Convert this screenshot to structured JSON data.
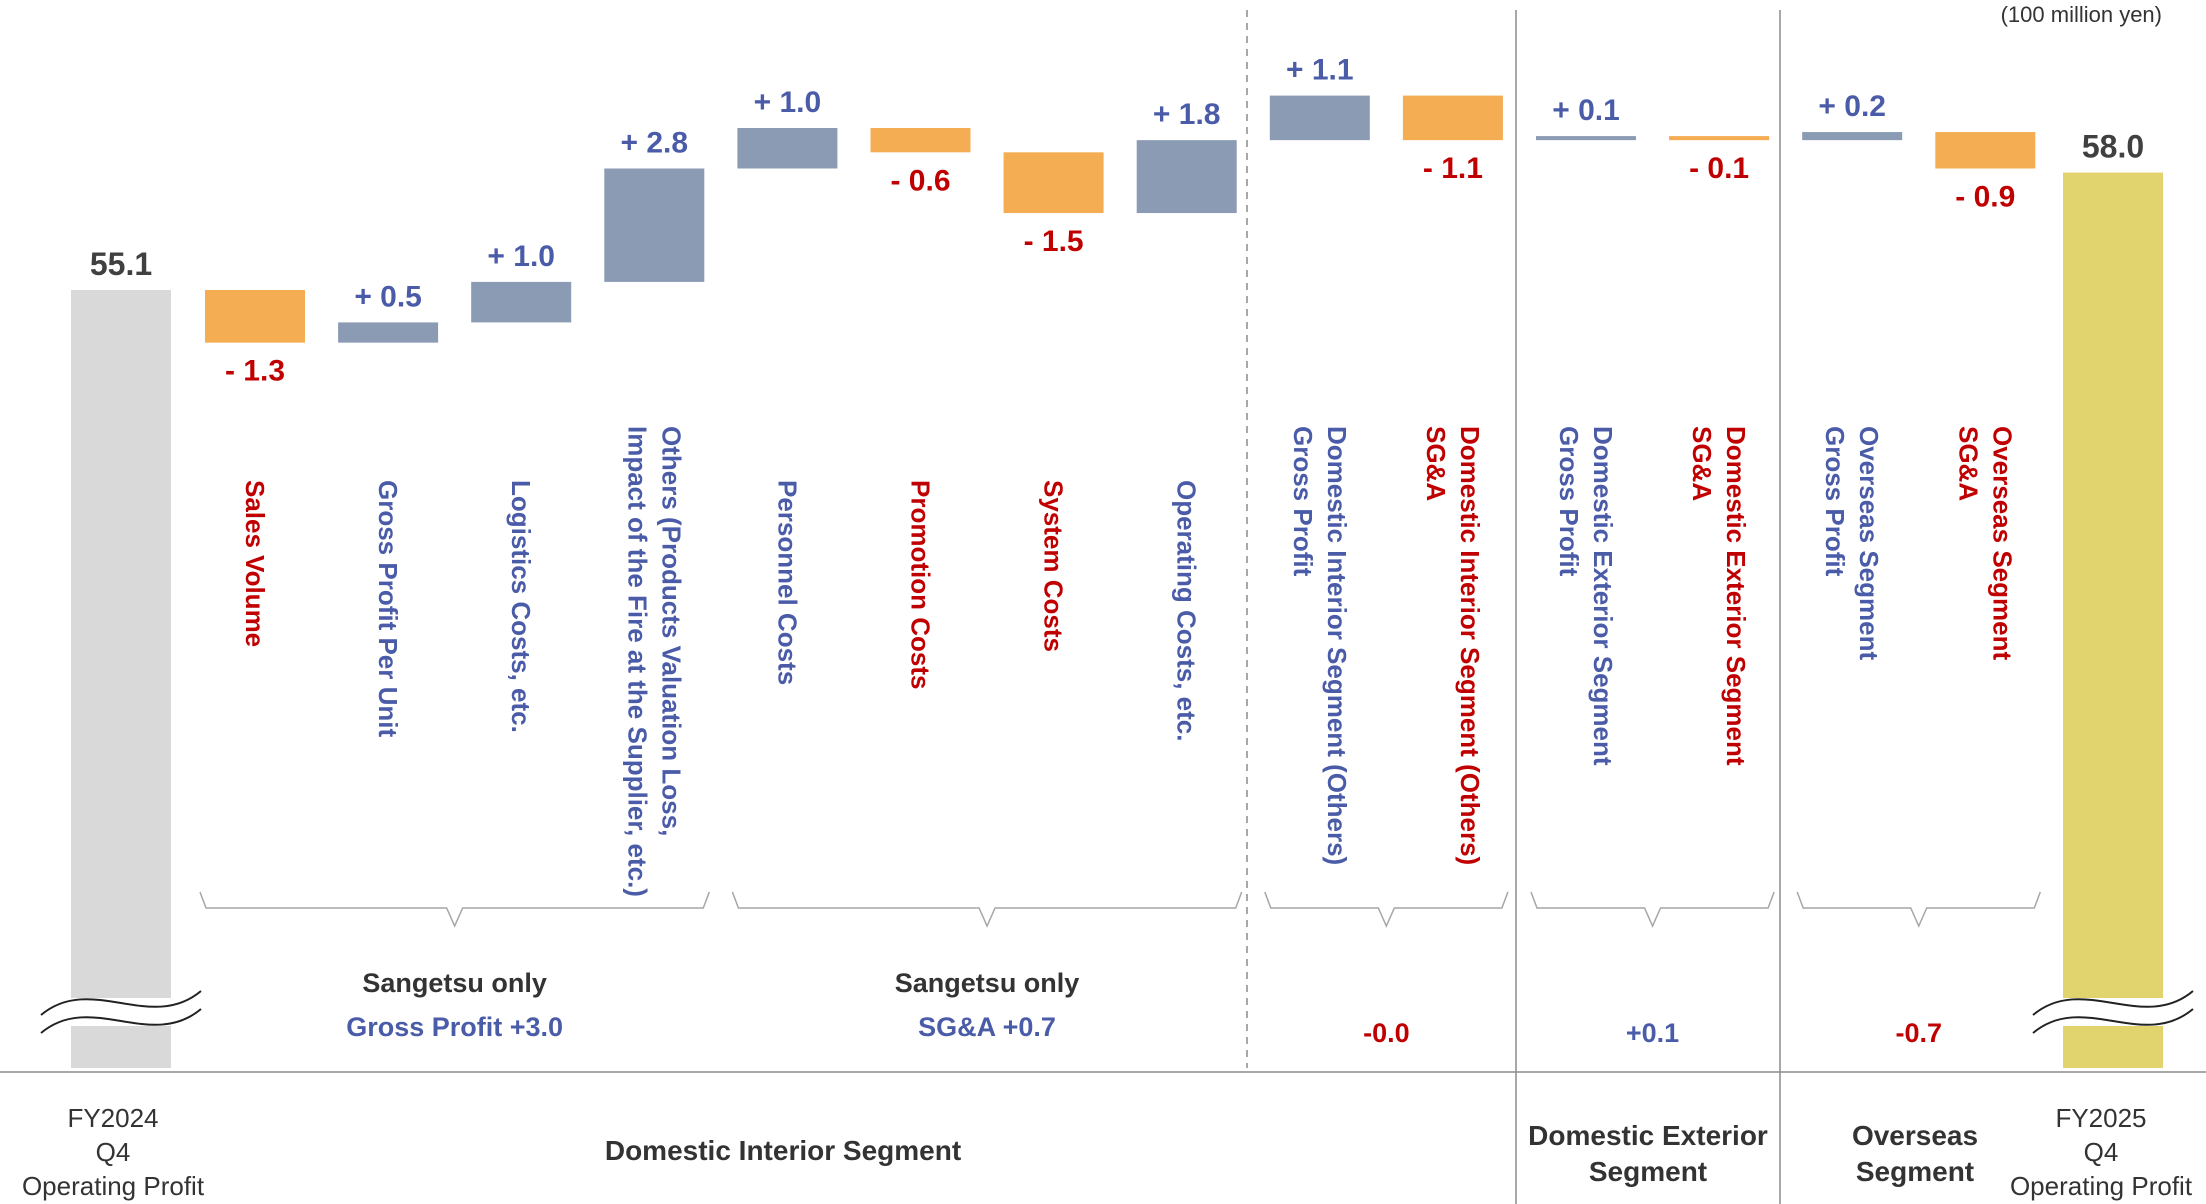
{
  "unit_note": "(100 million yen)",
  "colors": {
    "positive": "#8a9bb3",
    "negative": "#f4ad52",
    "start_bar": "#d9d9d9",
    "end_bar": "#e1d46e",
    "blue_text": "#4a5ba8",
    "red_text": "#c00000"
  },
  "chart_data": {
    "type": "bar",
    "subtype": "waterfall",
    "unit": "(100 million yen)",
    "start": {
      "label_lines": [
        "FY2024",
        "Q4",
        "Operating Profit"
      ],
      "value": 55.1,
      "value_text": "55.1"
    },
    "end": {
      "label_lines": [
        "FY2025",
        "Q4",
        "Operating Profit"
      ],
      "value": 58.0,
      "value_text": "58.0"
    },
    "steps": [
      {
        "label_lines": [
          "Sales Volume"
        ],
        "value": -1.3,
        "value_text": "- 1.3",
        "label_color": "red"
      },
      {
        "label_lines": [
          "Gross Profit Per Unit"
        ],
        "value": 0.5,
        "value_text": "+ 0.5",
        "label_color": "blue"
      },
      {
        "label_lines": [
          "Logistics Costs, etc."
        ],
        "value": 1.0,
        "value_text": "+ 1.0",
        "label_color": "blue"
      },
      {
        "label_lines": [
          "Others  (Products Valuation Loss,",
          "Impact of the Fire at the Supplier, etc.)"
        ],
        "value": 2.8,
        "value_text": "+ 2.8",
        "label_color": "blue"
      },
      {
        "label_lines": [
          "Personnel Costs"
        ],
        "value": 1.0,
        "value_text": "+ 1.0",
        "label_color": "blue"
      },
      {
        "label_lines": [
          "Promotion Costs"
        ],
        "value": -0.6,
        "value_text": "- 0.6",
        "label_color": "red"
      },
      {
        "label_lines": [
          "System Costs"
        ],
        "value": -1.5,
        "value_text": "- 1.5",
        "label_color": "red"
      },
      {
        "label_lines": [
          "Operating Costs, etc."
        ],
        "value": 1.8,
        "value_text": "+ 1.8",
        "label_color": "blue"
      },
      {
        "label_lines": [
          "Domestic Interior Segment (Others)",
          "Gross Profit"
        ],
        "value": 1.1,
        "value_text": "+ 1.1",
        "label_color": "blue"
      },
      {
        "label_lines": [
          "Domestic Interior Segment (Others)",
          "SG&A"
        ],
        "value": -1.1,
        "value_text": "- 1.1",
        "label_color": "red"
      },
      {
        "label_lines": [
          "Domestic Exterior Segment",
          "Gross Profit"
        ],
        "value": 0.1,
        "value_text": "+ 0.1",
        "label_color": "blue"
      },
      {
        "label_lines": [
          "Domestic Exterior Segment",
          "SG&A"
        ],
        "value": -0.1,
        "value_text": "- 0.1",
        "label_color": "red"
      },
      {
        "label_lines": [
          "Overseas Segment",
          "Gross Profit"
        ],
        "value": 0.2,
        "value_text": "+ 0.2",
        "label_color": "blue"
      },
      {
        "label_lines": [
          "Overseas Segment",
          "SG&A"
        ],
        "value": -0.9,
        "value_text": "- 0.9",
        "label_color": "red"
      }
    ],
    "groups": [
      {
        "title": "Sangetsu only",
        "subtitle": "Gross Profit +3.0",
        "first_step": 0,
        "last_step": 3
      },
      {
        "title": "Sangetsu only",
        "subtitle": "SG&A +0.7",
        "first_step": 4,
        "last_step": 7
      },
      {
        "title": "",
        "subtitle": "-0.0",
        "first_step": 8,
        "last_step": 9
      },
      {
        "title": "",
        "subtitle": "+0.1",
        "first_step": 10,
        "last_step": 11
      },
      {
        "title": "",
        "subtitle": "-0.7",
        "first_step": 12,
        "last_step": 13
      }
    ],
    "segments": [
      {
        "label_lines": [
          "Domestic Interior Segment"
        ],
        "first_step": 0,
        "last_step": 9
      },
      {
        "label_lines": [
          "Domestic Exterior",
          "Segment"
        ],
        "first_step": 10,
        "last_step": 11
      },
      {
        "label_lines": [
          "Overseas",
          "Segment"
        ],
        "first_step": 12,
        "last_step": 13
      }
    ],
    "axis_break": true
  }
}
